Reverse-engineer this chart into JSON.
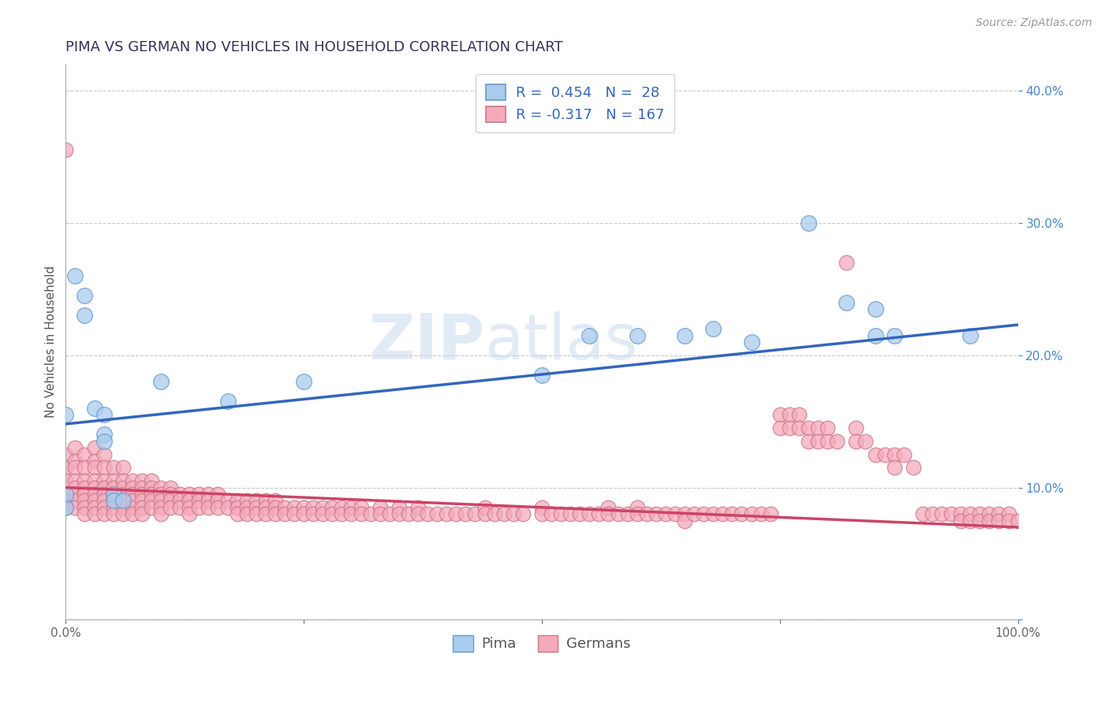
{
  "title": "PIMA VS GERMAN NO VEHICLES IN HOUSEHOLD CORRELATION CHART",
  "source_text": "Source: ZipAtlas.com",
  "ylabel": "No Vehicles in Household",
  "xlim": [
    0.0,
    1.0
  ],
  "ylim": [
    0.0,
    0.42
  ],
  "background_color": "#ffffff",
  "grid_color": "#c8c8c8",
  "title_color": "#333355",
  "watermark_zip": "ZIP",
  "watermark_atlas": "atlas",
  "pima_color": "#aaccee",
  "pima_edge_color": "#6699cc",
  "german_color": "#f5aabb",
  "german_edge_color": "#cc7788",
  "pima_line_color": "#3366bb",
  "german_line_color": "#cc4466",
  "pima_intercept": 0.148,
  "pima_slope": 0.075,
  "german_intercept": 0.1,
  "german_slope": -0.03,
  "pima_points": [
    [
      0.0,
      0.085
    ],
    [
      0.0,
      0.095
    ],
    [
      0.01,
      0.26
    ],
    [
      0.02,
      0.245
    ],
    [
      0.02,
      0.23
    ],
    [
      0.03,
      0.16
    ],
    [
      0.04,
      0.155
    ],
    [
      0.04,
      0.14
    ],
    [
      0.0,
      0.155
    ],
    [
      0.04,
      0.135
    ],
    [
      0.05,
      0.095
    ],
    [
      0.05,
      0.09
    ],
    [
      0.06,
      0.09
    ],
    [
      0.1,
      0.18
    ],
    [
      0.17,
      0.165
    ],
    [
      0.25,
      0.18
    ],
    [
      0.5,
      0.185
    ],
    [
      0.55,
      0.215
    ],
    [
      0.6,
      0.215
    ],
    [
      0.65,
      0.215
    ],
    [
      0.68,
      0.22
    ],
    [
      0.72,
      0.21
    ],
    [
      0.78,
      0.3
    ],
    [
      0.82,
      0.24
    ],
    [
      0.85,
      0.235
    ],
    [
      0.85,
      0.215
    ],
    [
      0.87,
      0.215
    ],
    [
      0.95,
      0.215
    ]
  ],
  "german_points": [
    [
      0.0,
      0.355
    ],
    [
      0.0,
      0.125
    ],
    [
      0.0,
      0.115
    ],
    [
      0.0,
      0.105
    ],
    [
      0.0,
      0.095
    ],
    [
      0.0,
      0.09
    ],
    [
      0.0,
      0.085
    ],
    [
      0.01,
      0.13
    ],
    [
      0.01,
      0.12
    ],
    [
      0.01,
      0.115
    ],
    [
      0.01,
      0.105
    ],
    [
      0.01,
      0.1
    ],
    [
      0.01,
      0.095
    ],
    [
      0.01,
      0.09
    ],
    [
      0.01,
      0.085
    ],
    [
      0.02,
      0.125
    ],
    [
      0.02,
      0.115
    ],
    [
      0.02,
      0.105
    ],
    [
      0.02,
      0.1
    ],
    [
      0.02,
      0.095
    ],
    [
      0.02,
      0.09
    ],
    [
      0.02,
      0.085
    ],
    [
      0.02,
      0.08
    ],
    [
      0.03,
      0.13
    ],
    [
      0.03,
      0.12
    ],
    [
      0.03,
      0.115
    ],
    [
      0.03,
      0.105
    ],
    [
      0.03,
      0.1
    ],
    [
      0.03,
      0.095
    ],
    [
      0.03,
      0.09
    ],
    [
      0.03,
      0.085
    ],
    [
      0.03,
      0.08
    ],
    [
      0.04,
      0.125
    ],
    [
      0.04,
      0.115
    ],
    [
      0.04,
      0.105
    ],
    [
      0.04,
      0.1
    ],
    [
      0.04,
      0.095
    ],
    [
      0.04,
      0.09
    ],
    [
      0.04,
      0.085
    ],
    [
      0.04,
      0.08
    ],
    [
      0.05,
      0.115
    ],
    [
      0.05,
      0.105
    ],
    [
      0.05,
      0.1
    ],
    [
      0.05,
      0.095
    ],
    [
      0.05,
      0.09
    ],
    [
      0.05,
      0.085
    ],
    [
      0.05,
      0.08
    ],
    [
      0.06,
      0.115
    ],
    [
      0.06,
      0.105
    ],
    [
      0.06,
      0.1
    ],
    [
      0.06,
      0.095
    ],
    [
      0.06,
      0.09
    ],
    [
      0.06,
      0.085
    ],
    [
      0.06,
      0.08
    ],
    [
      0.07,
      0.105
    ],
    [
      0.07,
      0.1
    ],
    [
      0.07,
      0.095
    ],
    [
      0.07,
      0.09
    ],
    [
      0.07,
      0.085
    ],
    [
      0.07,
      0.08
    ],
    [
      0.08,
      0.105
    ],
    [
      0.08,
      0.1
    ],
    [
      0.08,
      0.095
    ],
    [
      0.08,
      0.09
    ],
    [
      0.08,
      0.085
    ],
    [
      0.08,
      0.08
    ],
    [
      0.09,
      0.105
    ],
    [
      0.09,
      0.1
    ],
    [
      0.09,
      0.095
    ],
    [
      0.09,
      0.09
    ],
    [
      0.09,
      0.085
    ],
    [
      0.1,
      0.1
    ],
    [
      0.1,
      0.095
    ],
    [
      0.1,
      0.09
    ],
    [
      0.1,
      0.085
    ],
    [
      0.1,
      0.08
    ],
    [
      0.11,
      0.1
    ],
    [
      0.11,
      0.095
    ],
    [
      0.11,
      0.09
    ],
    [
      0.11,
      0.085
    ],
    [
      0.12,
      0.095
    ],
    [
      0.12,
      0.09
    ],
    [
      0.12,
      0.085
    ],
    [
      0.13,
      0.095
    ],
    [
      0.13,
      0.09
    ],
    [
      0.13,
      0.085
    ],
    [
      0.13,
      0.08
    ],
    [
      0.14,
      0.095
    ],
    [
      0.14,
      0.09
    ],
    [
      0.14,
      0.085
    ],
    [
      0.15,
      0.095
    ],
    [
      0.15,
      0.09
    ],
    [
      0.15,
      0.085
    ],
    [
      0.16,
      0.095
    ],
    [
      0.16,
      0.09
    ],
    [
      0.16,
      0.085
    ],
    [
      0.17,
      0.09
    ],
    [
      0.17,
      0.085
    ],
    [
      0.18,
      0.09
    ],
    [
      0.18,
      0.085
    ],
    [
      0.18,
      0.08
    ],
    [
      0.19,
      0.09
    ],
    [
      0.19,
      0.085
    ],
    [
      0.19,
      0.08
    ],
    [
      0.2,
      0.09
    ],
    [
      0.2,
      0.085
    ],
    [
      0.2,
      0.08
    ],
    [
      0.21,
      0.09
    ],
    [
      0.21,
      0.085
    ],
    [
      0.21,
      0.08
    ],
    [
      0.22,
      0.09
    ],
    [
      0.22,
      0.085
    ],
    [
      0.22,
      0.08
    ],
    [
      0.23,
      0.085
    ],
    [
      0.23,
      0.08
    ],
    [
      0.24,
      0.085
    ],
    [
      0.24,
      0.08
    ],
    [
      0.25,
      0.085
    ],
    [
      0.25,
      0.08
    ],
    [
      0.26,
      0.085
    ],
    [
      0.26,
      0.08
    ],
    [
      0.27,
      0.085
    ],
    [
      0.27,
      0.08
    ],
    [
      0.28,
      0.085
    ],
    [
      0.28,
      0.08
    ],
    [
      0.29,
      0.085
    ],
    [
      0.29,
      0.08
    ],
    [
      0.3,
      0.085
    ],
    [
      0.3,
      0.08
    ],
    [
      0.31,
      0.085
    ],
    [
      0.31,
      0.08
    ],
    [
      0.32,
      0.08
    ],
    [
      0.33,
      0.085
    ],
    [
      0.33,
      0.08
    ],
    [
      0.34,
      0.08
    ],
    [
      0.35,
      0.085
    ],
    [
      0.35,
      0.08
    ],
    [
      0.36,
      0.08
    ],
    [
      0.37,
      0.085
    ],
    [
      0.37,
      0.08
    ],
    [
      0.38,
      0.08
    ],
    [
      0.39,
      0.08
    ],
    [
      0.4,
      0.08
    ],
    [
      0.41,
      0.08
    ],
    [
      0.42,
      0.08
    ],
    [
      0.43,
      0.08
    ],
    [
      0.44,
      0.085
    ],
    [
      0.44,
      0.08
    ],
    [
      0.45,
      0.08
    ],
    [
      0.46,
      0.08
    ],
    [
      0.47,
      0.08
    ],
    [
      0.48,
      0.08
    ],
    [
      0.5,
      0.085
    ],
    [
      0.5,
      0.08
    ],
    [
      0.51,
      0.08
    ],
    [
      0.52,
      0.08
    ],
    [
      0.53,
      0.08
    ],
    [
      0.54,
      0.08
    ],
    [
      0.55,
      0.08
    ],
    [
      0.56,
      0.08
    ],
    [
      0.57,
      0.085
    ],
    [
      0.57,
      0.08
    ],
    [
      0.58,
      0.08
    ],
    [
      0.59,
      0.08
    ],
    [
      0.6,
      0.085
    ],
    [
      0.6,
      0.08
    ],
    [
      0.61,
      0.08
    ],
    [
      0.62,
      0.08
    ],
    [
      0.63,
      0.08
    ],
    [
      0.64,
      0.08
    ],
    [
      0.65,
      0.08
    ],
    [
      0.65,
      0.075
    ],
    [
      0.66,
      0.08
    ],
    [
      0.67,
      0.08
    ],
    [
      0.68,
      0.08
    ],
    [
      0.69,
      0.08
    ],
    [
      0.7,
      0.08
    ],
    [
      0.71,
      0.08
    ],
    [
      0.72,
      0.08
    ],
    [
      0.73,
      0.08
    ],
    [
      0.74,
      0.08
    ],
    [
      0.75,
      0.155
    ],
    [
      0.75,
      0.145
    ],
    [
      0.76,
      0.155
    ],
    [
      0.76,
      0.145
    ],
    [
      0.77,
      0.155
    ],
    [
      0.77,
      0.145
    ],
    [
      0.78,
      0.145
    ],
    [
      0.78,
      0.135
    ],
    [
      0.79,
      0.145
    ],
    [
      0.79,
      0.135
    ],
    [
      0.8,
      0.145
    ],
    [
      0.8,
      0.135
    ],
    [
      0.81,
      0.135
    ],
    [
      0.82,
      0.27
    ],
    [
      0.83,
      0.145
    ],
    [
      0.83,
      0.135
    ],
    [
      0.84,
      0.135
    ],
    [
      0.85,
      0.125
    ],
    [
      0.86,
      0.125
    ],
    [
      0.87,
      0.125
    ],
    [
      0.87,
      0.115
    ],
    [
      0.88,
      0.125
    ],
    [
      0.89,
      0.115
    ],
    [
      0.9,
      0.08
    ],
    [
      0.91,
      0.08
    ],
    [
      0.92,
      0.08
    ],
    [
      0.93,
      0.08
    ],
    [
      0.94,
      0.08
    ],
    [
      0.94,
      0.075
    ],
    [
      0.95,
      0.08
    ],
    [
      0.95,
      0.075
    ],
    [
      0.96,
      0.08
    ],
    [
      0.96,
      0.075
    ],
    [
      0.97,
      0.08
    ],
    [
      0.97,
      0.075
    ],
    [
      0.98,
      0.08
    ],
    [
      0.98,
      0.075
    ],
    [
      0.99,
      0.08
    ],
    [
      0.99,
      0.075
    ],
    [
      1.0,
      0.075
    ]
  ],
  "title_fontsize": 13,
  "axis_label_fontsize": 11,
  "tick_fontsize": 11,
  "legend_fontsize": 13,
  "source_fontsize": 10
}
